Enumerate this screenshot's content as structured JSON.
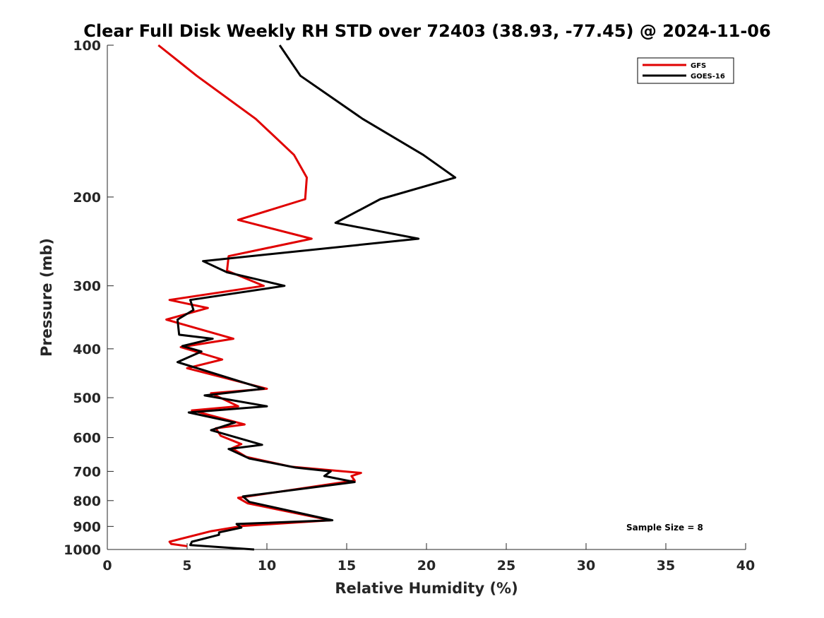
{
  "chart_data": {
    "type": "line",
    "title": "Clear Full Disk Weekly RH STD over 72403 (38.93, -77.45) @ 2024-11-06",
    "xlabel": "Relative Humidity (%)",
    "ylabel": "Pressure (mb)",
    "xlim": [
      0,
      40
    ],
    "ylim": [
      100,
      1000
    ],
    "y_scale": "log",
    "y_reversed": true,
    "x_ticks": [
      0,
      5,
      10,
      15,
      20,
      25,
      30,
      35,
      40
    ],
    "y_ticks": [
      100,
      200,
      300,
      400,
      500,
      600,
      700,
      800,
      900,
      1000
    ],
    "grid": false,
    "legend_position": "top-right",
    "annotation": "Sample Size = 8",
    "series": [
      {
        "name": "GFS",
        "color": "#e00000",
        "x": [
          3.2,
          5.6,
          9.3,
          11.7,
          12.5,
          12.4,
          8.2,
          12.8,
          7.6,
          7.5,
          9.8,
          3.9,
          6.3,
          3.7,
          7.9,
          4.6,
          7.2,
          5.0,
          10.0,
          6.5,
          8.2,
          5.3,
          8.6,
          6.8,
          7.1,
          8.4,
          7.8,
          8.7,
          11.5,
          15.9,
          15.3,
          15.5,
          8.2,
          8.8,
          14.0,
          8.5,
          6.5,
          3.9,
          4.0,
          5.0
        ],
        "y": [
          100,
          115,
          140,
          165,
          183,
          202,
          222,
          242,
          262,
          280,
          300,
          320,
          332,
          350,
          382,
          397,
          420,
          437,
          480,
          490,
          520,
          530,
          565,
          575,
          595,
          618,
          630,
          655,
          685,
          705,
          715,
          730,
          790,
          810,
          875,
          898,
          920,
          965,
          975,
          985
        ]
      },
      {
        "name": "GOES-16",
        "color": "#000000",
        "x": [
          10.8,
          12.1,
          16.0,
          19.8,
          21.8,
          17.1,
          14.3,
          19.5,
          6.0,
          7.5,
          11.1,
          5.2,
          5.4,
          4.4,
          4.5,
          6.6,
          4.7,
          5.9,
          4.4,
          9.8,
          6.1,
          10.0,
          5.1,
          8.0,
          6.5,
          9.7,
          7.6,
          8.9,
          11.8,
          14.0,
          13.6,
          15.5,
          8.5,
          8.9,
          14.1,
          8.1,
          8.4,
          7.0,
          7.0,
          5.3,
          5.2,
          9.2
        ],
        "y": [
          100,
          115,
          140,
          165,
          183,
          202,
          225,
          242,
          268,
          282,
          300,
          320,
          335,
          350,
          375,
          382,
          395,
          405,
          425,
          480,
          495,
          520,
          535,
          560,
          580,
          620,
          632,
          660,
          688,
          700,
          715,
          735,
          785,
          805,
          875,
          890,
          905,
          925,
          935,
          965,
          980,
          1000
        ]
      }
    ]
  }
}
